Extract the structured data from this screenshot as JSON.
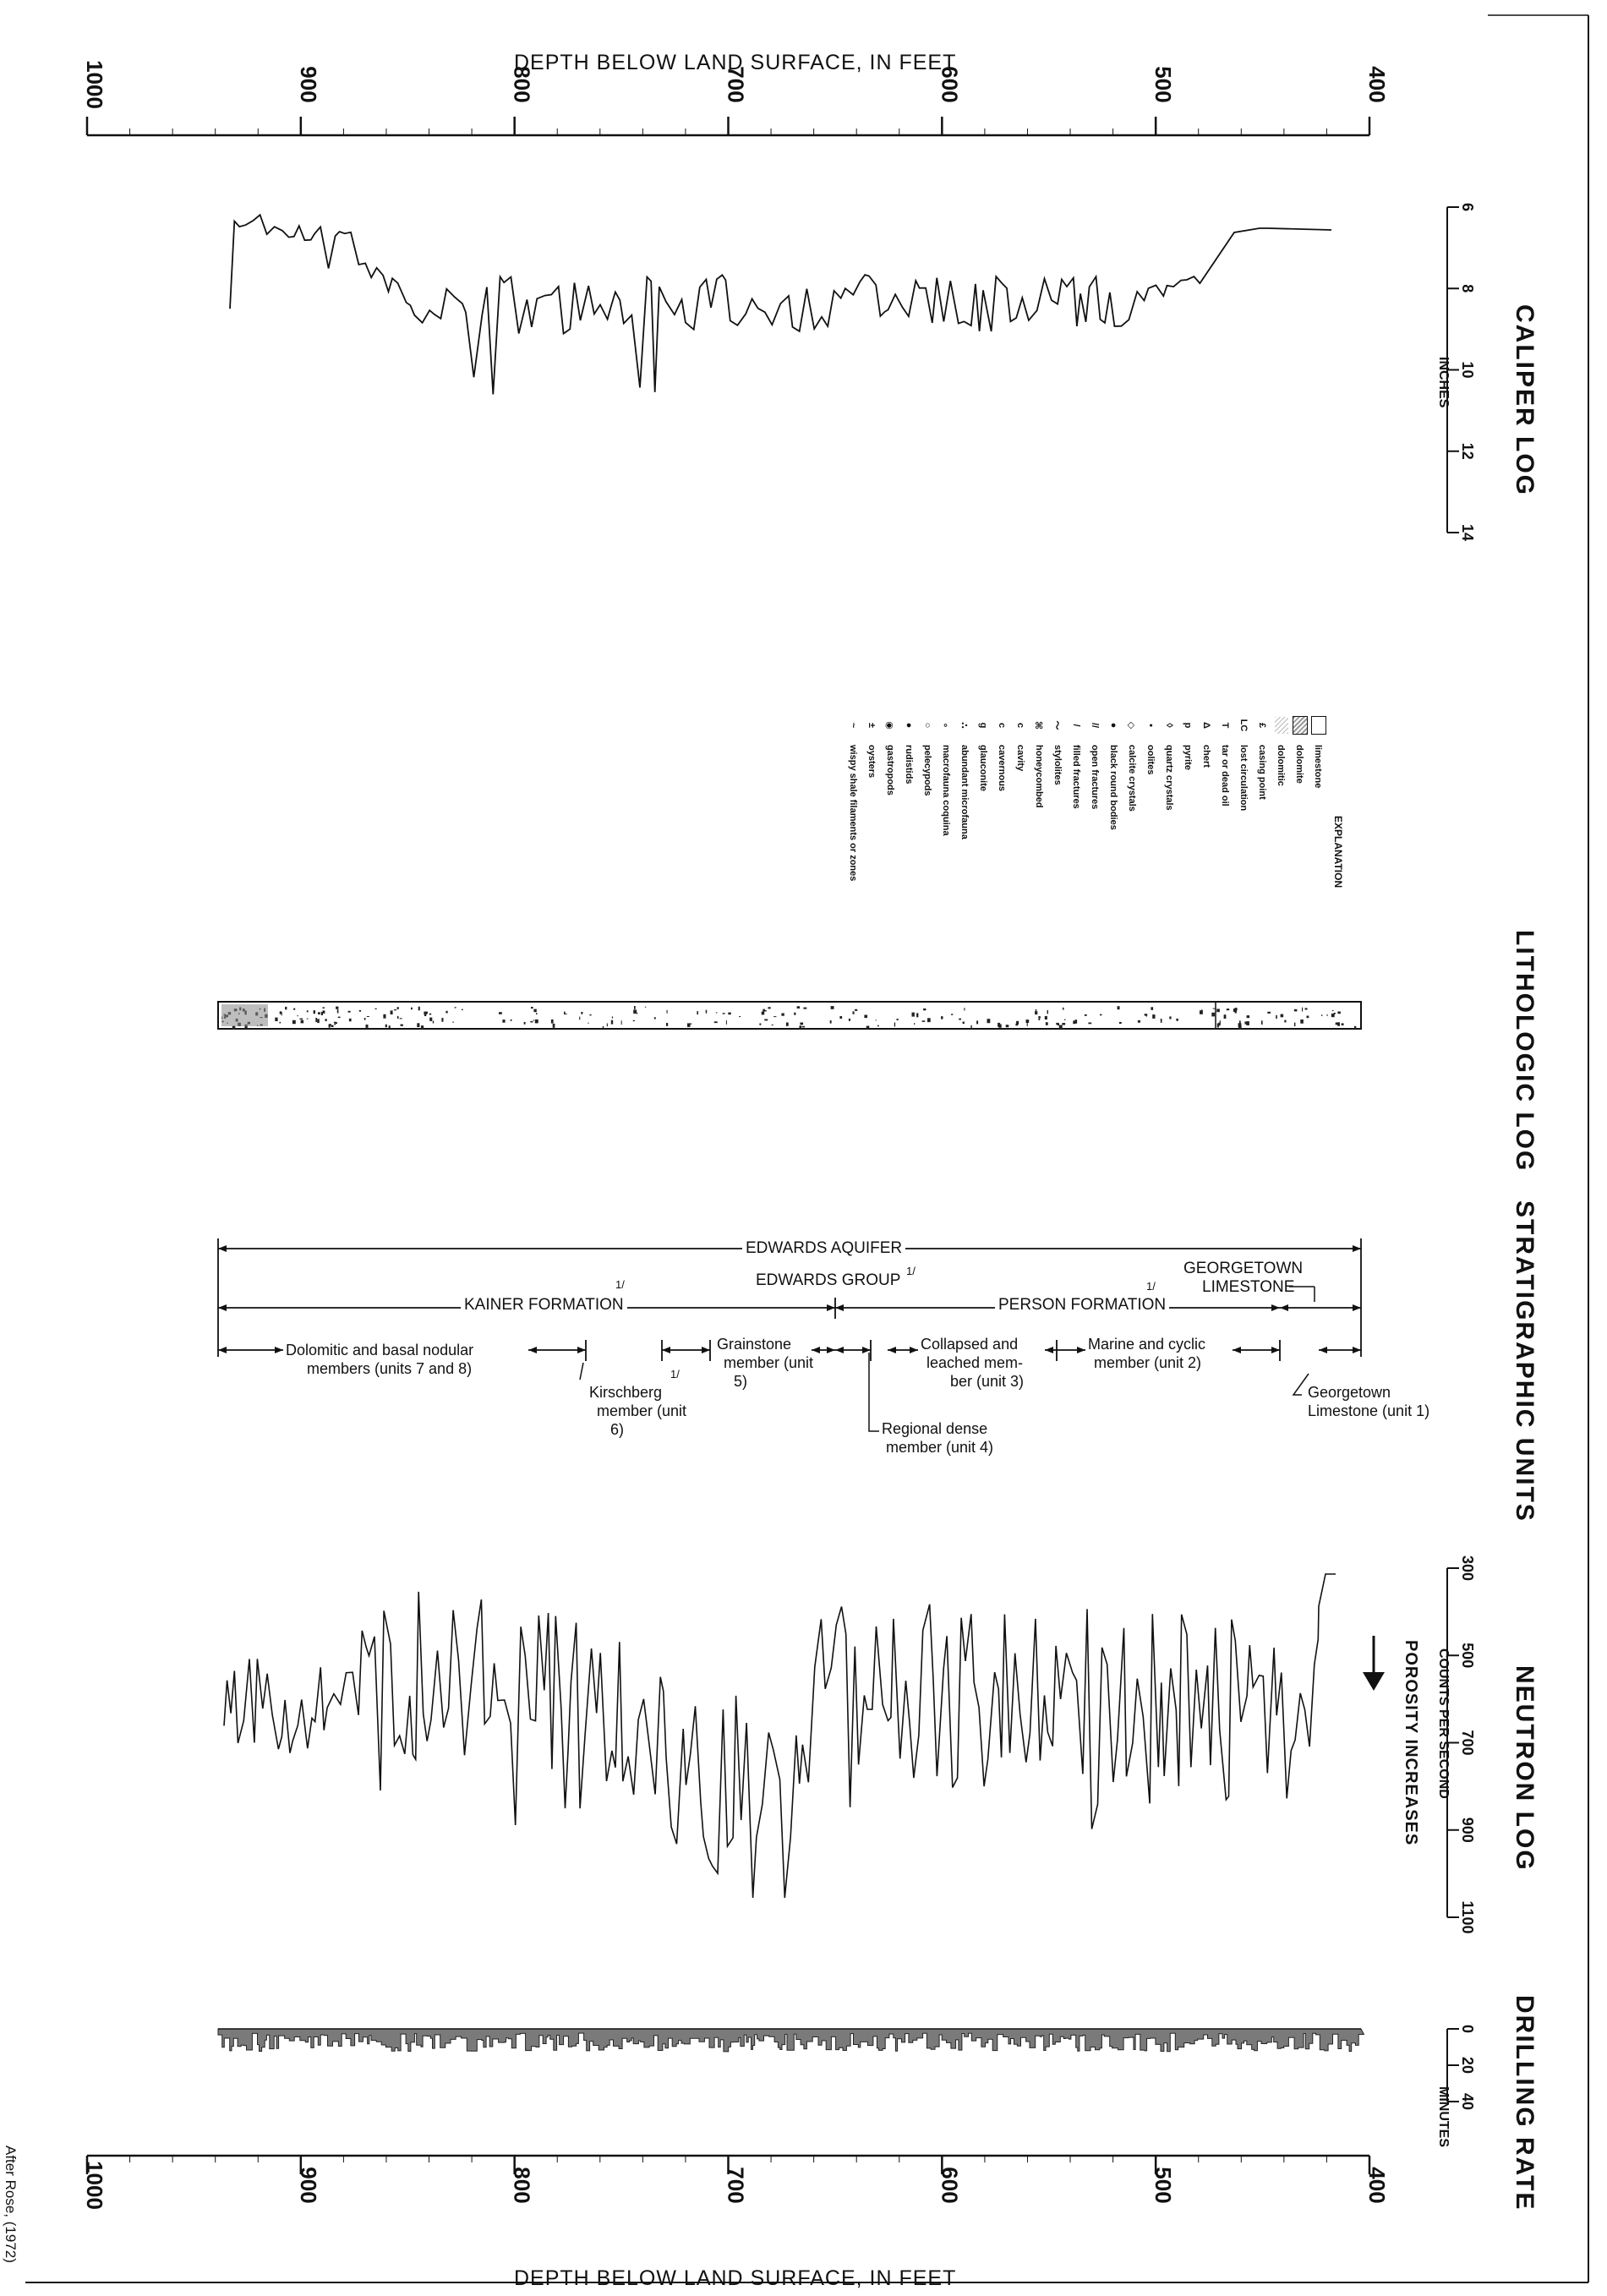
{
  "depth_axis": {
    "title": "DEPTH BELOW LAND SURFACE, IN FEET",
    "ticks": [
      "1000",
      "900",
      "800",
      "700",
      "600",
      "500",
      "400"
    ]
  },
  "tracks": {
    "caliper": {
      "title": "CALIPER LOG",
      "unit": "INCHES",
      "ticks": [
        "6",
        "8",
        "10",
        "12",
        "14"
      ]
    },
    "lithologic": {
      "title": "LITHOLOGIC LOG"
    },
    "stratigraphic": {
      "title": "STRATIGRAPHIC UNITS"
    },
    "neutron": {
      "title": "NEUTRON LOG",
      "unit": "COUNTS PER SECOND",
      "ticks": [
        "300",
        "500",
        "700",
        "900",
        "1100"
      ],
      "note": "POROSITY INCREASES"
    },
    "drilling": {
      "title": "DRILLING RATE",
      "unit": "MINUTES",
      "ticks": [
        "0",
        "20",
        "40"
      ]
    }
  },
  "explanation": {
    "title": "EXPLANATION",
    "items": [
      {
        "symbol": "box",
        "label": "limestone"
      },
      {
        "symbol": "dots",
        "label": "dolomite"
      },
      {
        "symbol": "slash",
        "label": "dolomitic"
      },
      {
        "symbol": "£",
        "label": "casing point"
      },
      {
        "symbol": "LC",
        "label": "lost circulation"
      },
      {
        "symbol": "T",
        "label": "tar or dead oil"
      },
      {
        "symbol": "Δ",
        "label": "chert"
      },
      {
        "symbol": "p",
        "label": "pyrite"
      },
      {
        "symbol": "◊",
        "label": "quartz crystals"
      },
      {
        "symbol": "•",
        "label": "oolites"
      },
      {
        "symbol": "◇",
        "label": "calcite crystals"
      },
      {
        "symbol": "●",
        "label": "black round bodies"
      },
      {
        "symbol": "//",
        "label": "open fractures"
      },
      {
        "symbol": "/",
        "label": "filled fractures"
      },
      {
        "symbol": "〜",
        "label": "stylolites"
      },
      {
        "symbol": "⌘",
        "label": "honeycombed"
      },
      {
        "symbol": "c",
        "label": "cavity"
      },
      {
        "symbol": "c",
        "label": "cavernous"
      },
      {
        "symbol": "g",
        "label": "glauconite"
      },
      {
        "symbol": "∴",
        "label": "abundant microfauna"
      },
      {
        "symbol": "∘",
        "label": "macrofauna coquina"
      },
      {
        "symbol": "○",
        "label": "pelecypods"
      },
      {
        "symbol": "●",
        "label": "rudistids"
      },
      {
        "symbol": "◉",
        "label": "gastropods"
      },
      {
        "symbol": "±",
        "label": "oysters"
      },
      {
        "symbol": "~",
        "label": "wispy shale filaments or zones"
      }
    ]
  },
  "strat_labels": {
    "edwards_aquifer": "EDWARDS AQUIFER",
    "edwards_group": "EDWARDS GROUP",
    "kainer": "KAINER FORMATION",
    "person": "PERSON FORMATION",
    "georgetown_top_1": "GEORGETOWN",
    "georgetown_top_2": "LIMESTONE",
    "dolomitic_1": "Dolomitic and basal nodular",
    "dolomitic_2": "members (units 7 and 8)",
    "kirschberg_1": "Kirschberg",
    "kirschberg_2": "member (unit",
    "kirschberg_3": "6)",
    "grainstone_1": "Grainstone",
    "grainstone_2": "member (unit",
    "grainstone_3": "5)",
    "regional_1": "Regional dense",
    "regional_2": "member (unit 4)",
    "collapsed_1": "Collapsed and",
    "collapsed_2": "leached mem-",
    "collapsed_3": "ber (unit 3)",
    "marine_1": "Marine and cyclic",
    "marine_2": "member (unit 2)",
    "georgetown_unit_1": "Georgetown",
    "georgetown_unit_2": "Limestone (unit 1)",
    "footnote_mark": "1/"
  },
  "footnote": "After Rose, (1972)"
}
